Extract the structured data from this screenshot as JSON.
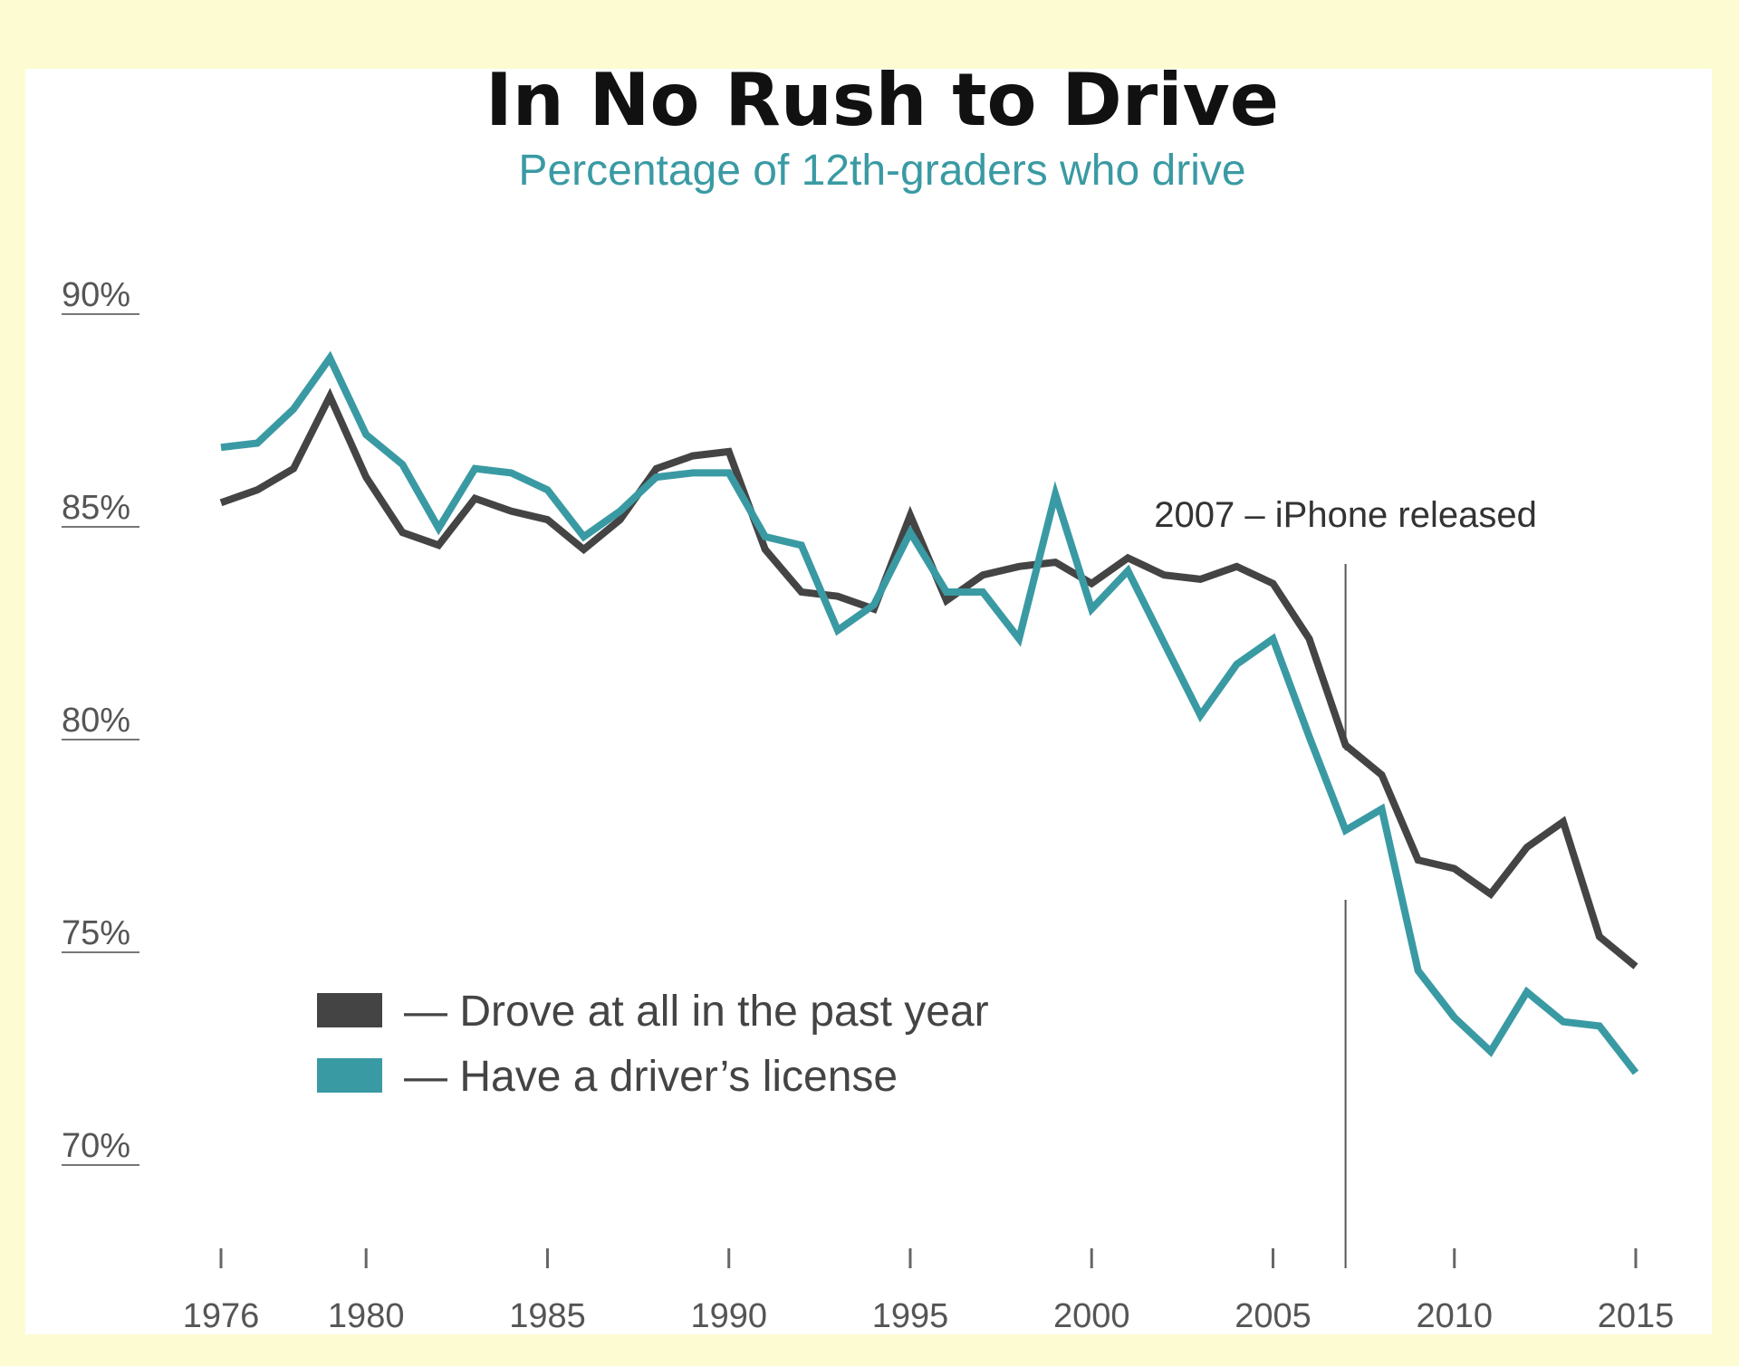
{
  "chart_data": {
    "type": "line",
    "title": "In No Rush to Drive",
    "subtitle": "Percentage of 12th-graders who drive",
    "xlabel": "",
    "ylabel": "",
    "xlim": [
      1976,
      2015
    ],
    "ylim": [
      68,
      92
    ],
    "yticks": [
      {
        "value": 90,
        "label": "90%"
      },
      {
        "value": 85,
        "label": "85%"
      },
      {
        "value": 80,
        "label": "80%"
      },
      {
        "value": 75,
        "label": "75%"
      },
      {
        "value": 70,
        "label": "70%"
      }
    ],
    "xticks": [
      {
        "value": 1976,
        "label": "1976"
      },
      {
        "value": 1980,
        "label": "1980"
      },
      {
        "value": 1985,
        "label": "1985"
      },
      {
        "value": 1990,
        "label": "1990"
      },
      {
        "value": 1995,
        "label": "1995"
      },
      {
        "value": 2000,
        "label": "2000"
      },
      {
        "value": 2005,
        "label": "2005"
      },
      {
        "value": 2010,
        "label": "2010"
      },
      {
        "value": 2015,
        "label": "2015"
      }
    ],
    "x": [
      1976,
      1977,
      1978,
      1979,
      1980,
      1981,
      1982,
      1983,
      1984,
      1985,
      1986,
      1987,
      1988,
      1989,
      1990,
      1991,
      1992,
      1993,
      1994,
      1995,
      1996,
      1997,
      1998,
      1999,
      2000,
      2001,
      2002,
      2003,
      2004,
      2005,
      2006,
      2007,
      2008,
      2009,
      2010,
      2011,
      2012,
      2013,
      2014,
      2015
    ],
    "series": [
      {
        "name": "Drove at all in the past year",
        "color": "#444444",
        "values": [
          85.1,
          85.4,
          85.9,
          87.6,
          85.7,
          84.4,
          84.1,
          85.2,
          84.9,
          84.7,
          84.0,
          84.7,
          85.9,
          86.2,
          86.3,
          84.0,
          83.0,
          82.9,
          82.6,
          84.8,
          82.8,
          83.4,
          83.6,
          83.7,
          83.2,
          83.8,
          83.4,
          83.3,
          83.6,
          83.2,
          81.9,
          79.4,
          78.7,
          76.7,
          76.5,
          75.9,
          77.0,
          77.6,
          74.9,
          74.2
        ],
        "legend_label": "— Drove at all in the past year"
      },
      {
        "name": "Have a driver’s license",
        "color": "#3a9aa3",
        "values": [
          86.4,
          86.5,
          87.3,
          88.5,
          86.7,
          86.0,
          84.5,
          85.9,
          85.8,
          85.4,
          84.3,
          84.9,
          85.7,
          85.8,
          85.8,
          84.3,
          84.1,
          82.1,
          82.7,
          84.4,
          83.0,
          83.0,
          81.9,
          85.3,
          82.6,
          83.5,
          81.8,
          80.1,
          81.3,
          81.9,
          79.6,
          77.4,
          77.9,
          74.1,
          73.0,
          72.2,
          73.6,
          72.9,
          72.8,
          71.7
        ],
        "legend_label": "— Have a driver’s license"
      }
    ],
    "annotations": [
      {
        "x": 2007,
        "text": "2007 – iPhone released"
      }
    ],
    "grid": false,
    "legend": "bottom-left"
  }
}
